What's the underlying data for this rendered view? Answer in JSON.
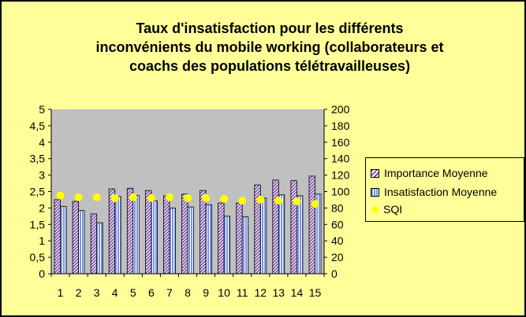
{
  "chart_data": {
    "type": "bar",
    "title": "Taux d'insatisfaction pour les différents inconvénients du mobile working (collaborateurs et coachs des populations télétravailleuses)",
    "title_lines": [
      "Taux d'insatisfaction pour les différents",
      "inconvénients du mobile working (collaborateurs et",
      "coachs des populations télétravailleuses)"
    ],
    "categories": [
      "1",
      "2",
      "3",
      "4",
      "5",
      "6",
      "7",
      "8",
      "9",
      "10",
      "11",
      "12",
      "13",
      "14",
      "15"
    ],
    "series": [
      {
        "name": "Importance Moyenne",
        "axis": "left",
        "kind": "bar",
        "color": "#7a4aa8",
        "values": [
          2.25,
          2.2,
          1.82,
          2.58,
          2.6,
          2.53,
          2.37,
          2.42,
          2.53,
          2.15,
          2.15,
          2.7,
          2.85,
          2.83,
          2.97
        ]
      },
      {
        "name": "Insatisfaction Moyenne",
        "axis": "left",
        "kind": "bar",
        "color": "#7b96e8",
        "values": [
          2.05,
          1.92,
          1.55,
          2.35,
          2.38,
          2.22,
          2.0,
          2.03,
          2.1,
          1.75,
          1.73,
          2.3,
          2.4,
          2.37,
          2.42
        ]
      },
      {
        "name": "SQI",
        "axis": "right",
        "kind": "point",
        "color": "#ffff00",
        "values": [
          95,
          93,
          93,
          92,
          93,
          92,
          93,
          92,
          92,
          91,
          89,
          90,
          89,
          88,
          85
        ]
      }
    ],
    "y_left": {
      "min": 0,
      "max": 5,
      "ticks": [
        "0",
        "0,5",
        "1",
        "1,5",
        "2",
        "2,5",
        "3",
        "3,5",
        "4",
        "4,5",
        "5"
      ]
    },
    "y_right": {
      "min": 0,
      "max": 200,
      "ticks": [
        "0",
        "20",
        "40",
        "60",
        "80",
        "100",
        "120",
        "140",
        "160",
        "180",
        "200"
      ]
    },
    "grid": false,
    "legend_position": "right",
    "colors": {
      "background": "#ffff99",
      "plot_area": "#c0c0c0"
    }
  }
}
